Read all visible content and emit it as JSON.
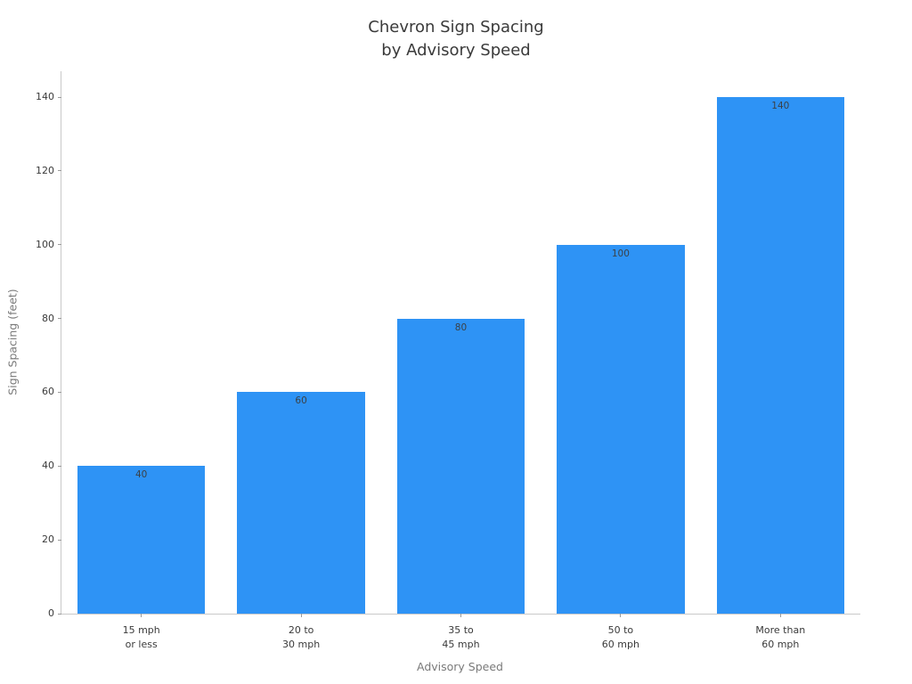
{
  "chart_data": {
    "type": "bar",
    "title": "Chevron Sign Spacing\nby Advisory Speed",
    "title_lines": [
      "Chevron Sign Spacing",
      "by Advisory Speed"
    ],
    "categories": [
      [
        "15 mph",
        "or less"
      ],
      [
        "20 to",
        "30 mph"
      ],
      [
        "35 to",
        "45 mph"
      ],
      [
        "50 to",
        "60 mph"
      ],
      [
        "More than",
        "60 mph"
      ]
    ],
    "values": [
      40,
      60,
      80,
      100,
      140
    ],
    "bar_labels": [
      "40",
      "60",
      "80",
      "100",
      "140"
    ],
    "xlabel": "Advisory Speed",
    "ylabel": "Sign Spacing (feet)",
    "yticks": [
      0,
      20,
      40,
      60,
      80,
      100,
      120,
      140
    ],
    "ylim": [
      0,
      147
    ],
    "grid": false,
    "legend": null,
    "colors": {
      "bar": "#2e93f5",
      "bar_value_label": "#3b4147",
      "tick_label": "#3a3a3a",
      "axis_label": "#7a7a7a",
      "title": "#3a3a3a",
      "spine": "#c9c9c9",
      "background": "#ffffff"
    }
  }
}
